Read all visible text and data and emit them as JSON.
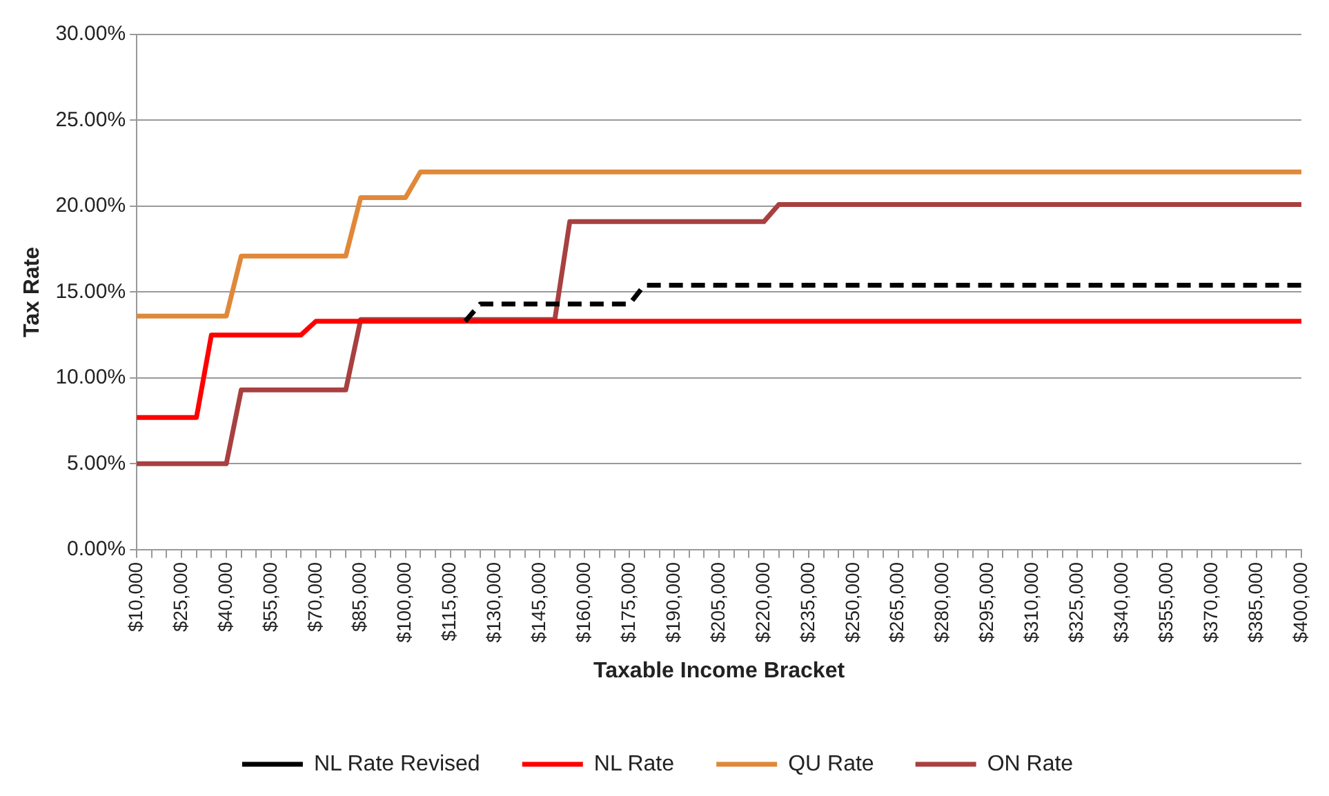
{
  "chart_data": {
    "type": "line",
    "xlabel": "Taxable Income Bracket",
    "ylabel": "Tax Rate",
    "categories": [
      "$10,000",
      null,
      null,
      "$25,000",
      null,
      null,
      "$40,000",
      null,
      null,
      "$55,000",
      null,
      null,
      "$70,000",
      null,
      null,
      "$85,000",
      null,
      null,
      "$100,000",
      null,
      null,
      "$115,000",
      null,
      null,
      "$130,000",
      null,
      null,
      "$145,000",
      null,
      null,
      "$160,000",
      null,
      null,
      "$175,000",
      null,
      null,
      "$190,000",
      null,
      null,
      "$205,000",
      null,
      null,
      "$220,000",
      null,
      null,
      "$235,000",
      null,
      null,
      "$250,000",
      null,
      null,
      "$265,000",
      null,
      null,
      "$280,000",
      null,
      null,
      "$295,000",
      null,
      null,
      "$310,000",
      null,
      null,
      "$325,000",
      null,
      null,
      "$340,000",
      null,
      null,
      "$355,000",
      null,
      null,
      "$370,000",
      null,
      null,
      "$385,000",
      null,
      null,
      "$400,000"
    ],
    "series": [
      {
        "name": "NL Rate Revised",
        "color": "#000000",
        "line_style": "dashed",
        "values": [
          null,
          null,
          null,
          null,
          null,
          null,
          null,
          null,
          null,
          null,
          null,
          null,
          null,
          null,
          null,
          null,
          null,
          null,
          null,
          null,
          null,
          null,
          13.3,
          14.3,
          14.3,
          14.3,
          14.3,
          14.3,
          14.3,
          14.3,
          14.3,
          14.3,
          14.3,
          14.3,
          15.4,
          15.4,
          15.4,
          15.4,
          15.4,
          15.4,
          15.4,
          15.4,
          15.4,
          15.4,
          15.4,
          15.4,
          15.4,
          15.4,
          15.4,
          15.4,
          15.4,
          15.4,
          15.4,
          15.4,
          15.4,
          15.4,
          15.4,
          15.4,
          15.4,
          15.4,
          15.4,
          15.4,
          15.4,
          15.4,
          15.4,
          15.4,
          15.4,
          15.4,
          15.4,
          15.4,
          15.4,
          15.4,
          15.4,
          15.4,
          15.4,
          15.4,
          15.4,
          15.4,
          15.4
        ]
      },
      {
        "name": "NL Rate",
        "color": "#ff0000",
        "line_style": "solid",
        "values": [
          7.7,
          7.7,
          7.7,
          7.7,
          7.7,
          12.5,
          12.5,
          12.5,
          12.5,
          12.5,
          12.5,
          12.5,
          13.3,
          13.3,
          13.3,
          13.3,
          13.3,
          13.3,
          13.3,
          13.3,
          13.3,
          13.3,
          13.3,
          13.3,
          13.3,
          13.3,
          13.3,
          13.3,
          13.3,
          13.3,
          13.3,
          13.3,
          13.3,
          13.3,
          13.3,
          13.3,
          13.3,
          13.3,
          13.3,
          13.3,
          13.3,
          13.3,
          13.3,
          13.3,
          13.3,
          13.3,
          13.3,
          13.3,
          13.3,
          13.3,
          13.3,
          13.3,
          13.3,
          13.3,
          13.3,
          13.3,
          13.3,
          13.3,
          13.3,
          13.3,
          13.3,
          13.3,
          13.3,
          13.3,
          13.3,
          13.3,
          13.3,
          13.3,
          13.3,
          13.3,
          13.3,
          13.3,
          13.3,
          13.3,
          13.3,
          13.3,
          13.3,
          13.3,
          13.3
        ]
      },
      {
        "name": "QU Rate",
        "color": "#e0883a",
        "line_style": "solid",
        "values": [
          13.6,
          13.6,
          13.6,
          13.6,
          13.6,
          13.6,
          13.6,
          17.1,
          17.1,
          17.1,
          17.1,
          17.1,
          17.1,
          17.1,
          17.1,
          20.5,
          20.5,
          20.5,
          20.5,
          22.0,
          22.0,
          22.0,
          22.0,
          22.0,
          22.0,
          22.0,
          22.0,
          22.0,
          22.0,
          22.0,
          22.0,
          22.0,
          22.0,
          22.0,
          22.0,
          22.0,
          22.0,
          22.0,
          22.0,
          22.0,
          22.0,
          22.0,
          22.0,
          22.0,
          22.0,
          22.0,
          22.0,
          22.0,
          22.0,
          22.0,
          22.0,
          22.0,
          22.0,
          22.0,
          22.0,
          22.0,
          22.0,
          22.0,
          22.0,
          22.0,
          22.0,
          22.0,
          22.0,
          22.0,
          22.0,
          22.0,
          22.0,
          22.0,
          22.0,
          22.0,
          22.0,
          22.0,
          22.0,
          22.0,
          22.0,
          22.0,
          22.0,
          22.0,
          22.0
        ]
      },
      {
        "name": "ON Rate",
        "color": "#a84040",
        "line_style": "solid",
        "values": [
          5.0,
          5.0,
          5.0,
          5.0,
          5.0,
          5.0,
          5.0,
          9.3,
          9.3,
          9.3,
          9.3,
          9.3,
          9.3,
          9.3,
          9.3,
          13.4,
          13.4,
          13.4,
          13.4,
          13.4,
          13.4,
          13.4,
          13.4,
          13.4,
          13.4,
          13.4,
          13.4,
          13.4,
          13.4,
          19.1,
          19.1,
          19.1,
          19.1,
          19.1,
          19.1,
          19.1,
          19.1,
          19.1,
          19.1,
          19.1,
          19.1,
          19.1,
          19.1,
          20.1,
          20.1,
          20.1,
          20.1,
          20.1,
          20.1,
          20.1,
          20.1,
          20.1,
          20.1,
          20.1,
          20.1,
          20.1,
          20.1,
          20.1,
          20.1,
          20.1,
          20.1,
          20.1,
          20.1,
          20.1,
          20.1,
          20.1,
          20.1,
          20.1,
          20.1,
          20.1,
          20.1,
          20.1,
          20.1,
          20.1,
          20.1,
          20.1,
          20.1,
          20.1,
          20.1
        ]
      }
    ],
    "ylim": [
      0,
      30
    ],
    "yticks": [
      {
        "value": 0,
        "label": "0.00%"
      },
      {
        "value": 5,
        "label": "5.00%"
      },
      {
        "value": 10,
        "label": "10.00%"
      },
      {
        "value": 15,
        "label": "15.00%"
      },
      {
        "value": 20,
        "label": "20.00%"
      },
      {
        "value": 25,
        "label": "25.00%"
      },
      {
        "value": 30,
        "label": "30.00%"
      }
    ],
    "grid": "y",
    "legend": "bottom",
    "marker": "none"
  }
}
